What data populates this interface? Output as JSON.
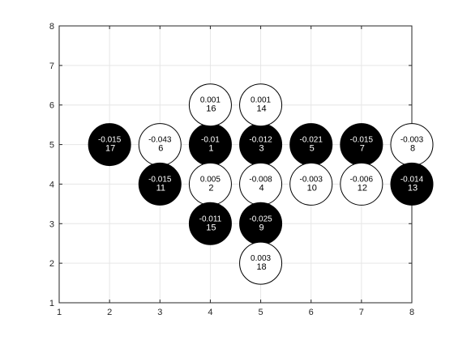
{
  "chart_data": {
    "type": "scatter",
    "title": "",
    "xlabel": "",
    "ylabel": "",
    "xlim": [
      1,
      8
    ],
    "ylim": [
      1,
      8
    ],
    "xticks": [
      1,
      2,
      3,
      4,
      5,
      6,
      7,
      8
    ],
    "yticks": [
      1,
      2,
      3,
      4,
      5,
      6,
      7,
      8
    ],
    "grid": true,
    "box": true,
    "fill_colors": {
      "filled": "#000000",
      "open": "#ffffff"
    },
    "text_colors": {
      "filled": "#ffffff",
      "open": "#000000"
    },
    "nodes": [
      {
        "id": "1",
        "value": "-0.01",
        "x": 4,
        "y": 5,
        "filled": true
      },
      {
        "id": "2",
        "value": "0.005",
        "x": 4,
        "y": 4,
        "filled": false
      },
      {
        "id": "3",
        "value": "-0.012",
        "x": 5,
        "y": 5,
        "filled": true
      },
      {
        "id": "4",
        "value": "-0.008",
        "x": 5,
        "y": 4,
        "filled": false
      },
      {
        "id": "5",
        "value": "-0.021",
        "x": 6,
        "y": 5,
        "filled": true
      },
      {
        "id": "6",
        "value": "-0.043",
        "x": 3,
        "y": 5,
        "filled": false
      },
      {
        "id": "7",
        "value": "-0.015",
        "x": 7,
        "y": 5,
        "filled": true
      },
      {
        "id": "8",
        "value": "-0.003",
        "x": 8,
        "y": 5,
        "filled": false
      },
      {
        "id": "9",
        "value": "-0.025",
        "x": 5,
        "y": 3,
        "filled": true
      },
      {
        "id": "10",
        "value": "-0.003",
        "x": 6,
        "y": 4,
        "filled": false
      },
      {
        "id": "11",
        "value": "-0.015",
        "x": 3,
        "y": 4,
        "filled": true
      },
      {
        "id": "12",
        "value": "-0.006",
        "x": 7,
        "y": 4,
        "filled": false
      },
      {
        "id": "13",
        "value": "-0.014",
        "x": 8,
        "y": 4,
        "filled": true
      },
      {
        "id": "14",
        "value": "0.001",
        "x": 5,
        "y": 6,
        "filled": false
      },
      {
        "id": "15",
        "value": "-0.011",
        "x": 4,
        "y": 3,
        "filled": true
      },
      {
        "id": "16",
        "value": "0.001",
        "x": 4,
        "y": 6,
        "filled": false
      },
      {
        "id": "17",
        "value": "-0.015",
        "x": 2,
        "y": 5,
        "filled": true
      },
      {
        "id": "18",
        "value": "0.003",
        "x": 5,
        "y": 2,
        "filled": false
      }
    ]
  }
}
